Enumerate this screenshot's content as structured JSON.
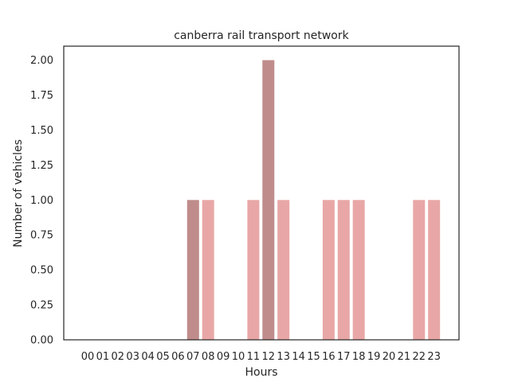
{
  "chart_data": {
    "type": "bar",
    "title": "canberra rail transport network",
    "xlabel": "Hours",
    "ylabel": "Number of vehicles",
    "categories": [
      "00",
      "01",
      "02",
      "03",
      "04",
      "05",
      "06",
      "07",
      "08",
      "09",
      "10",
      "11",
      "12",
      "13",
      "14",
      "15",
      "16",
      "17",
      "18",
      "19",
      "20",
      "21",
      "22",
      "23"
    ],
    "values": [
      0,
      0,
      0,
      0,
      0,
      0,
      0,
      1,
      1,
      0,
      0,
      1,
      2,
      1,
      0,
      0,
      1,
      1,
      1,
      0,
      0,
      0,
      1,
      1
    ],
    "highlighted": [
      "07",
      "12"
    ],
    "ylim": [
      0,
      2.1
    ],
    "yticks": [
      "0.00",
      "0.25",
      "0.50",
      "0.75",
      "1.00",
      "1.25",
      "1.50",
      "1.75",
      "2.00"
    ],
    "grid": false,
    "colors": {
      "bar": "#e8a7a6",
      "highlight": "#bf8c8b",
      "axis": "#262626"
    }
  }
}
